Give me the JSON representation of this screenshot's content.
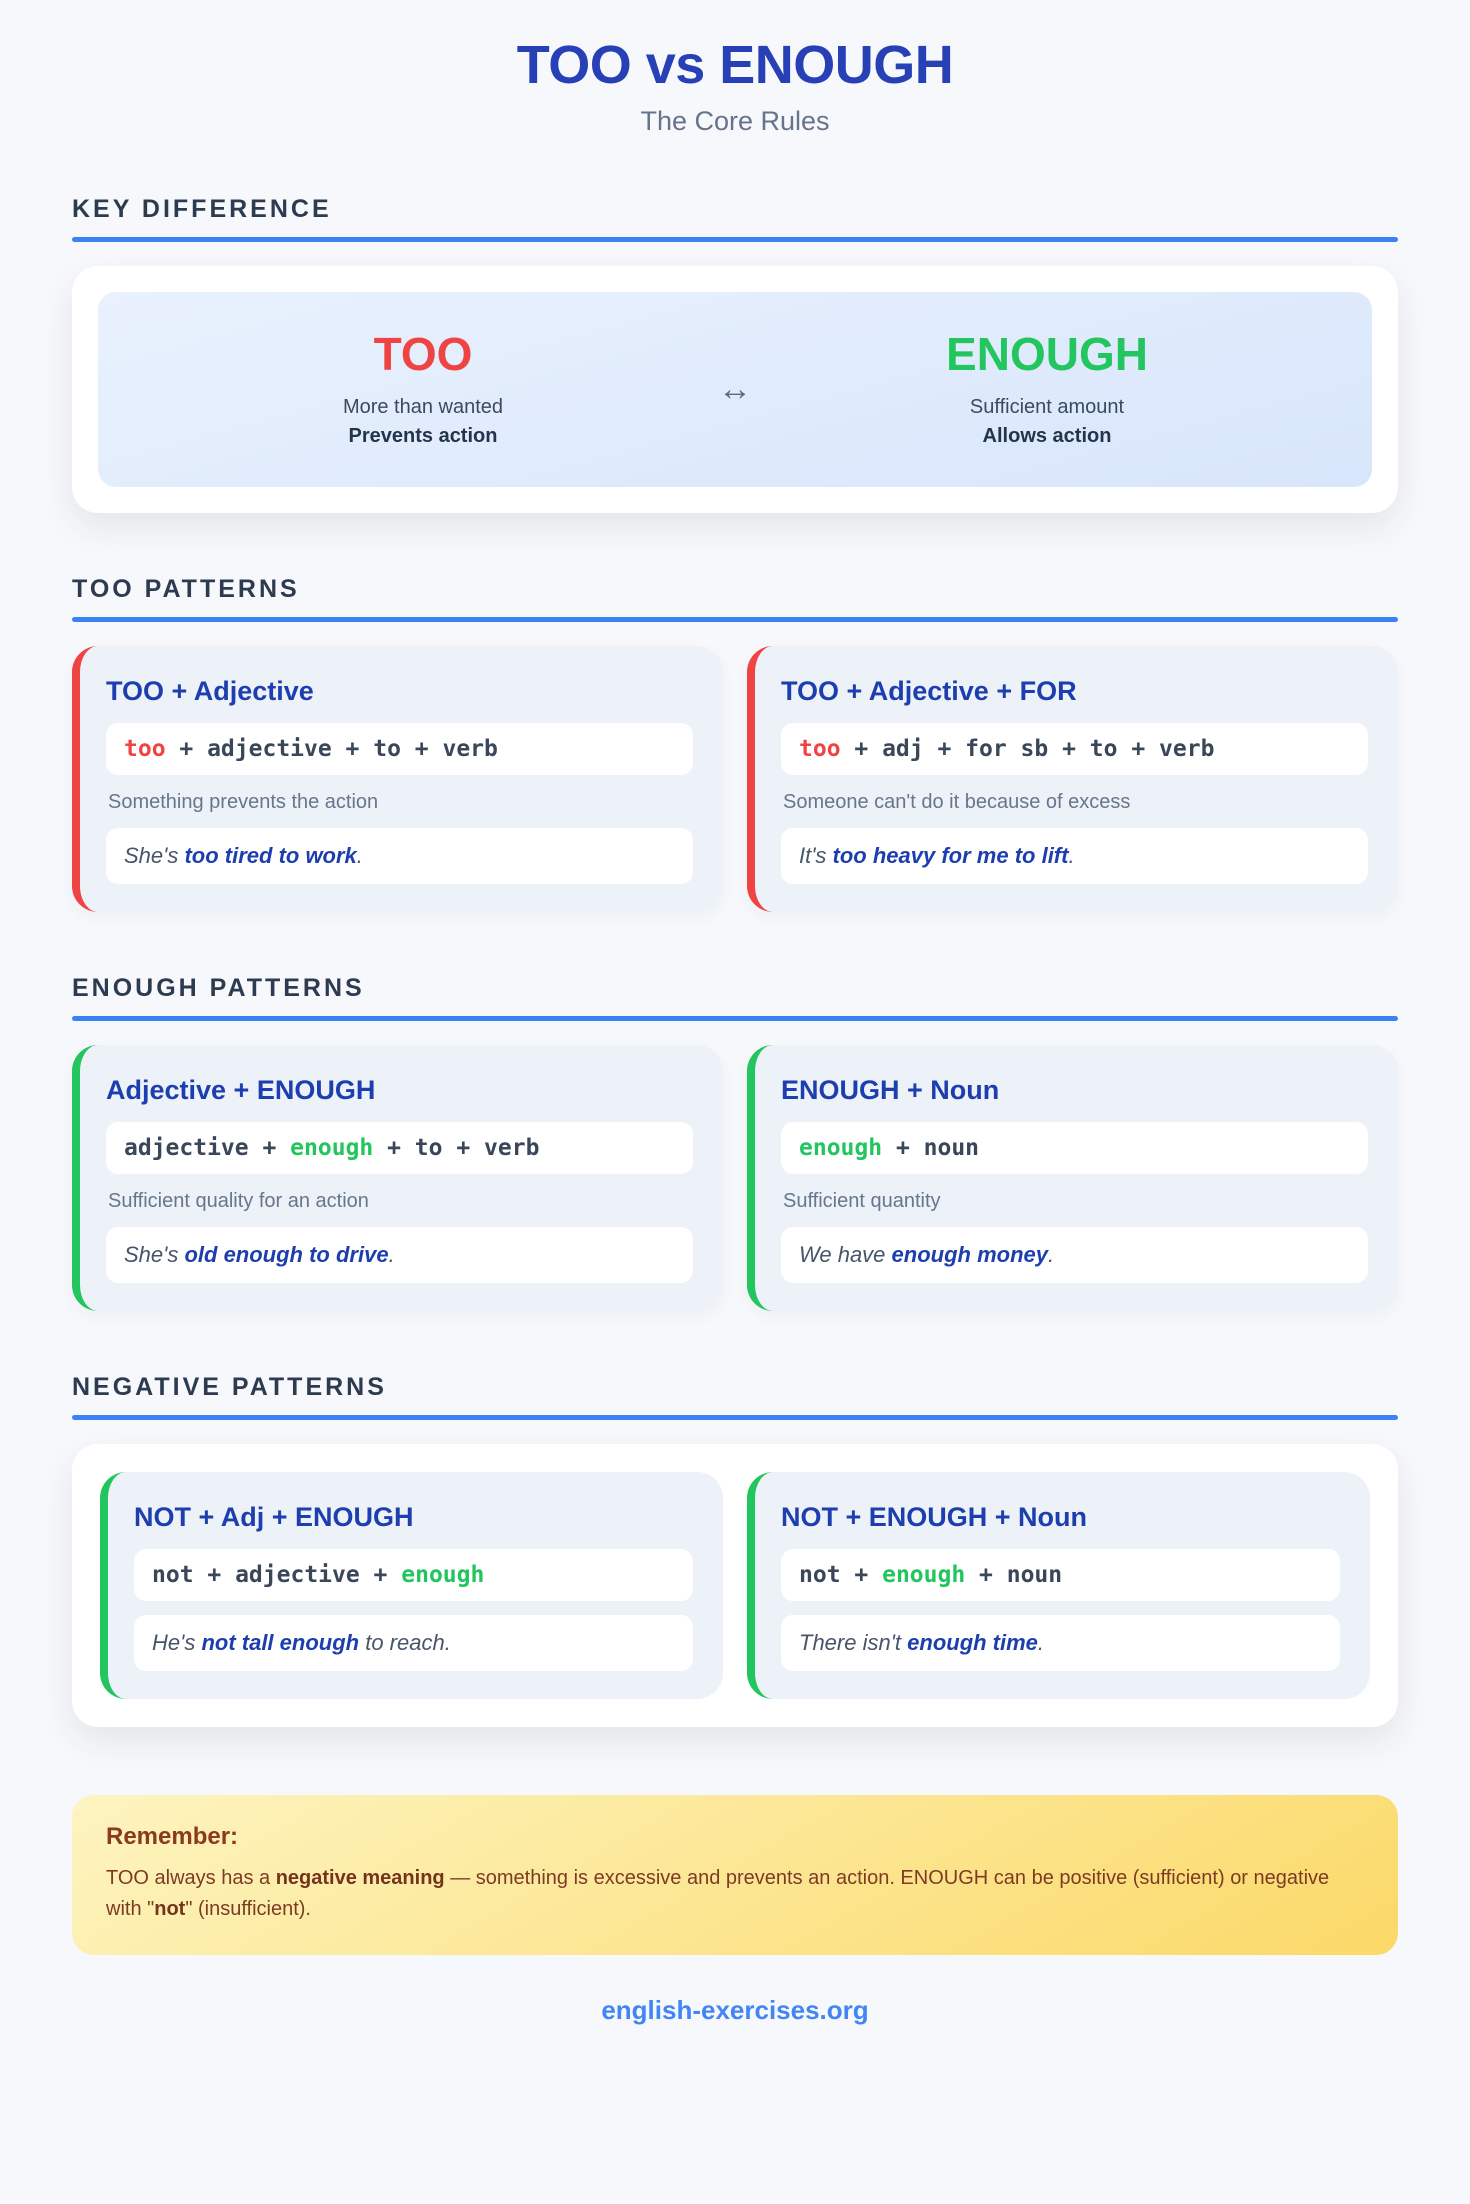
{
  "header": {
    "title": "TOO vs ENOUGH",
    "subtitle": "The Core Rules"
  },
  "key_difference": {
    "heading": "KEY DIFFERENCE",
    "too": {
      "word": "TOO",
      "desc": "More than wanted",
      "effect": "Prevents action"
    },
    "arrow_glyph": "↔",
    "enough": {
      "word": "ENOUGH",
      "desc": "Sufficient amount",
      "effect": "Allows action"
    }
  },
  "too_patterns": {
    "heading": "TOO PATTERNS",
    "cards": [
      {
        "title": "TOO + Adjective",
        "formula": {
          "pre": "",
          "key": "too",
          "post": " + adjective + to + verb"
        },
        "description": "Something prevents the action",
        "example": {
          "pre": "She's ",
          "bold": "too tired to work",
          "post": "."
        }
      },
      {
        "title": "TOO + Adjective + FOR",
        "formula": {
          "pre": "",
          "key": "too",
          "post": " + adj + for sb + to + verb"
        },
        "description": "Someone can't do it because of excess",
        "example": {
          "pre": "It's ",
          "bold": "too heavy for me to lift",
          "post": "."
        }
      }
    ]
  },
  "enough_patterns": {
    "heading": "ENOUGH PATTERNS",
    "cards": [
      {
        "title": "Adjective + ENOUGH",
        "formula": {
          "pre": "adjective + ",
          "key": "enough",
          "post": " + to + verb"
        },
        "description": "Sufficient quality for an action",
        "example": {
          "pre": "She's ",
          "bold": "old enough to drive",
          "post": "."
        }
      },
      {
        "title": "ENOUGH + Noun",
        "formula": {
          "pre": "",
          "key": "enough",
          "post": " + noun"
        },
        "description": "Sufficient quantity",
        "example": {
          "pre": "We have ",
          "bold": "enough money",
          "post": "."
        }
      }
    ]
  },
  "negative_patterns": {
    "heading": "NEGATIVE PATTERNS",
    "cards": [
      {
        "title": "NOT + Adj + ENOUGH",
        "formula": {
          "pre": "not + adjective + ",
          "key": "enough",
          "post": ""
        },
        "example": {
          "pre": "He's ",
          "bold": "not tall enough",
          "post": " to reach."
        }
      },
      {
        "title": "NOT + ENOUGH + Noun",
        "formula": {
          "pre": "not + ",
          "key": "enough",
          "post": " + noun"
        },
        "example": {
          "pre": "There isn't ",
          "bold": "enough time",
          "post": "."
        }
      }
    ]
  },
  "remember": {
    "title": "Remember:",
    "segments": [
      {
        "text": "TOO always has a ",
        "bold": false
      },
      {
        "text": "negative meaning",
        "bold": true
      },
      {
        "text": " — something is excessive and prevents an action. ENOUGH can be positive (sufficient) or negative with \"",
        "bold": false
      },
      {
        "text": "not",
        "bold": true
      },
      {
        "text": "\" (insufficient).",
        "bold": false
      }
    ]
  },
  "footer": {
    "site": "english-exercises.org"
  },
  "colors": {
    "background": "#f7f8fb",
    "accent_blue": "#3b82f6",
    "title_blue": "#2840b5",
    "card_title_blue": "#1d3eae",
    "red": "#ef4444",
    "green": "#22c55e",
    "remember_brown": "#8a3a1f",
    "footer_blue": "#4285f4"
  }
}
